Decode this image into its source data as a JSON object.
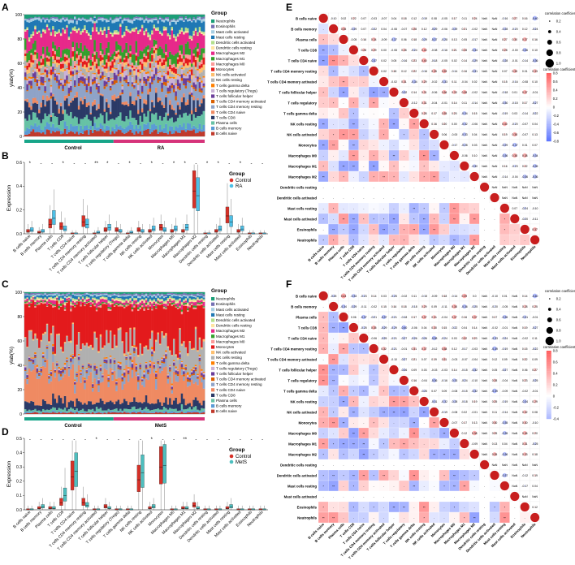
{
  "panel_labels": [
    "A",
    "B",
    "C",
    "D",
    "E",
    "F"
  ],
  "cell_types": [
    "B cells naive",
    "B cells memory",
    "Plasma cells",
    "T cells CD8",
    "T cells CD4 naive",
    "T cells CD4 memory resting",
    "T cells CD4 memory activated",
    "T cells follicular helper",
    "T cells regulatory (Tregs)",
    "T cells gamma delta",
    "NK cells resting",
    "NK cells activated",
    "Monocytes",
    "Macrophages M0",
    "Macrophages M1",
    "Macrophages M2",
    "Dendritic cells resting",
    "Dendritic cells activated",
    "Mast cells resting",
    "Mast cells activated",
    "Eosinophils",
    "Neutrophils"
  ],
  "legend_order": [
    "Neutrophils",
    "Eosinophils",
    "Mast cells activated",
    "Mast cells resting",
    "Dendritic cells activated",
    "Dendritic cells resting",
    "Macrophages M2",
    "Macrophages M1",
    "Macrophages M0",
    "Monocytes",
    "NK cells activated",
    "NK cells resting",
    "T cells gamma delta",
    "T cells regulatory (Tregs)",
    "T cells follicular helper",
    "T cells CD4 memory activated",
    "T cells CD4 memory resting",
    "T cells CD4 naive",
    "T cells CD8",
    "Plasma cells",
    "B cells memory",
    "B cells naive"
  ],
  "colors": {
    "Neutrophils": "#1b9e77",
    "Eosinophils": "#7570b3",
    "Mast cells activated": "#a6cee3",
    "Mast cells resting": "#1f78b4",
    "Dendritic cells activated": "#b2df8a",
    "Dendritic cells resting": "#ffe4a0",
    "Macrophages M2": "#e7298a",
    "Macrophages M1": "#33a02c",
    "Macrophages M0": "#fb9a99",
    "Monocytes": "#e31a1c",
    "NK cells activated": "#fdbf6f",
    "NK cells resting": "#b0b0b0",
    "T cells gamma delta": "#ff7f00",
    "T cells regulatory (Tregs)": "#cab2d6",
    "T cells follicular helper": "#6a3d9a",
    "T cells CD4 memory activated": "#d95f02",
    "T cells CD4 memory resting": "#8fa3c8",
    "T cells CD4 naive": "#ef8a62",
    "T cells CD8": "#2b3a67",
    "Plasma cells": "#66c2a5",
    "B cells memory": "#5a9bd5",
    "B cells naive": "#c0392b",
    "control": "#d73027",
    "case_B": "#4dbfe6",
    "case_D": "#4dbfbf",
    "bar_control": "#17a589",
    "bar_case": "#d6337a"
  },
  "panel_A": {
    "ylabel": "ylab(%)",
    "ticks": [
      "0",
      "20",
      "40",
      "60",
      "80",
      "100"
    ],
    "groups": [
      "Control",
      "RA"
    ],
    "legend_title": "Group"
  },
  "panel_C": {
    "ylabel": "ylab(%)",
    "ticks": [
      "0",
      "20",
      "40",
      "60",
      "80",
      "100"
    ],
    "groups": [
      "Control",
      "MetS"
    ],
    "legend_title": "Group"
  },
  "chart_data": [
    {
      "type": "bar",
      "panel": "A",
      "subtype": "stacked-100",
      "title": "",
      "ylabel": "ylab(%)",
      "groups": [
        "Control",
        "RA"
      ],
      "ylim": [
        0,
        100
      ],
      "note": "Relative abundance of 22 immune cell types per sample; Control on left, RA on right."
    },
    {
      "type": "boxplot",
      "panel": "B",
      "ylabel": "Expression",
      "ylim": [
        0,
        0.6
      ],
      "yticks": [
        "0.0",
        "0.2",
        "0.4",
        "0.6"
      ],
      "legend_title": "Group",
      "legend": [
        "Control",
        "RA"
      ],
      "categories": [
        "B cells naive",
        "B cells memory",
        "Plasma cells",
        "T cells CD8",
        "T cells CD4 naive",
        "T cells CD4 memory resting",
        "T cells CD4 memory activated",
        "T cells follicular helper",
        "T cells regulatory (Tregs)",
        "T cells gamma delta",
        "NK cells resting",
        "NK cells activated",
        "Monocytes",
        "Macrophages M0",
        "Macrophages M1",
        "Macrophages M2",
        "Dendritic cells resting",
        "Dendritic cells activated",
        "Mast cells resting",
        "Mast cells activated",
        "Eosinophils",
        "Neutrophils"
      ],
      "significance": [
        "*",
        "-",
        "-",
        "*",
        "-",
        "-",
        "**",
        "*",
        "-",
        "*",
        "-",
        "*",
        "-",
        "*",
        "*",
        "-",
        "*",
        "*",
        "-",
        "*",
        "-",
        "-"
      ],
      "medians_control": [
        0.02,
        0.01,
        0.08,
        0.06,
        0.0,
        0.1,
        0.0,
        0.03,
        0.03,
        0.0,
        0.03,
        0.02,
        0.05,
        0.02,
        0.02,
        0.36,
        0.0,
        0.02,
        0.15,
        0.02,
        0.0,
        0.0
      ],
      "medians_case": [
        0.03,
        0.02,
        0.13,
        0.04,
        0.0,
        0.08,
        0.01,
        0.05,
        0.02,
        0.01,
        0.02,
        0.04,
        0.03,
        0.04,
        0.05,
        0.32,
        0.0,
        0.04,
        0.1,
        0.04,
        0.0,
        0.0
      ]
    },
    {
      "type": "bar",
      "panel": "C",
      "subtype": "stacked-100",
      "ylabel": "ylab(%)",
      "groups": [
        "Control",
        "MetS"
      ],
      "ylim": [
        0,
        100
      ],
      "note": "Relative abundance of 22 immune cell types per sample; Control on left, MetS on right."
    },
    {
      "type": "boxplot",
      "panel": "D",
      "ylabel": "Expression",
      "ylim": [
        0,
        0.5
      ],
      "yticks": [
        "0.0",
        "0.1",
        "0.2",
        "0.3",
        "0.4",
        "0.5"
      ],
      "legend_title": "Group",
      "legend": [
        "Control",
        "MetS"
      ],
      "categories": [
        "B cells naive",
        "B cells memory",
        "Plasma cells",
        "T cells CD8",
        "T cells CD4 naive",
        "T cells CD4 memory resting",
        "T cells CD4 memory activated",
        "T cells follicular helper",
        "T cells regulatory (Tregs)",
        "T cells gamma delta",
        "NK cells resting",
        "NK cells activated",
        "Monocytes",
        "Macrophages M0",
        "Macrophages M1",
        "Macrophages M2",
        "Dendritic cells resting",
        "Dendritic cells activated",
        "Mast cells resting",
        "Mast cells activated",
        "Eosinophils",
        "Neutrophils"
      ],
      "significance": [
        "-",
        "-",
        "-",
        "-",
        "-",
        "-",
        "*",
        "-",
        "-",
        "-",
        "-",
        "*",
        "-",
        "-",
        "**",
        "-",
        "-",
        "-",
        "-",
        "-",
        "-",
        "-"
      ],
      "medians_control": [
        0.0,
        0.01,
        0.01,
        0.05,
        0.23,
        0.05,
        0.0,
        0.02,
        0.0,
        0.0,
        0.21,
        0.01,
        0.3,
        0.0,
        0.01,
        0.03,
        0.0,
        0.0,
        0.01,
        0.0,
        0.0,
        0.0
      ],
      "medians_case": [
        0.0,
        0.02,
        0.01,
        0.1,
        0.27,
        0.03,
        0.0,
        0.01,
        0.0,
        0.0,
        0.26,
        0.02,
        0.31,
        0.0,
        0.01,
        0.01,
        0.0,
        0.0,
        0.02,
        0.0,
        0.0,
        0.0
      ]
    },
    {
      "type": "heatmap",
      "panel": "E",
      "subtype": "correlation-lower-with-circles",
      "legend_circle_title": "correlation coefficient",
      "circle_ticks": [
        "0.2",
        "0.4",
        "0.6",
        "0.8",
        "1.0"
      ],
      "colorbar_title": "correlation coefficient",
      "colorbar_ticks": [
        "0.8",
        "0.6",
        "0.4",
        "0.2",
        "0",
        "-0.2",
        "-0.4",
        "-0.6",
        "-0.8"
      ],
      "labels": [
        "B cells naive",
        "B cells memory",
        "Plasma cells",
        "T cells CD8",
        "T cells CD4 naive",
        "T cells CD4 memory resting",
        "T cells CD4 memory activated",
        "T cells follicular helper",
        "T cells regulatory",
        "T cells gamma delta",
        "NK cells resting",
        "NK cells activated",
        "Monocytes",
        "Macrophages M0",
        "Macrophages M1",
        "Macrophages M2",
        "Dendritic cells resting",
        "Dendritic cells activated",
        "Mast cells resting",
        "Mast cells activated",
        "Eosinophils",
        "Neutrophils"
      ],
      "row0_values": [
        "-0.10",
        "0.02",
        "0.22",
        "0.07",
        "-0.03",
        "-0.07",
        "0.04",
        "0.18",
        "0.12",
        "-0.19",
        "0.08",
        "-0.05",
        "0.17",
        "0.11",
        "0.24",
        "NaN",
        "0.14",
        "-0.16",
        "0.27",
        "0.16"
      ]
    },
    {
      "type": "heatmap",
      "panel": "F",
      "subtype": "correlation-lower-with-circles",
      "legend_circle_title": "correlation coefficient",
      "circle_ticks": [
        "0.2",
        "0.4",
        "0.6",
        "0.8",
        "1.0"
      ],
      "colorbar_title": "correlation coefficient",
      "colorbar_ticks": [
        "0.8",
        "0.6",
        "0.4",
        "0.2",
        "0",
        "-0.2",
        "-0.4"
      ],
      "labels": [
        "B cells naive",
        "B cells memory",
        "Plasma cells",
        "T cells CD8",
        "T cells CD4 naive",
        "T cells CD4 memory resting",
        "T cells CD4 memory activated",
        "T cells follicular helper",
        "T cells regulatory",
        "T cells gamma delta",
        "NK cells resting",
        "NK cells activated",
        "Monocytes",
        "Macrophages M0",
        "Macrophages M1",
        "Macrophages M2",
        "Dendritic cells resting",
        "Dendritic cells activated",
        "Mast cells resting",
        "Mast cells activated",
        "Eosinophils",
        "Neutrophils"
      ],
      "row0_values": [
        "-0.25",
        "0.43",
        "-0.33",
        "-0.23",
        "0.14",
        "0.03",
        "-0.25",
        "-0.02",
        "0.11",
        "-0.15",
        "-0.09",
        "0.18",
        "-0.14",
        "0.39",
        "0.0",
        "NaN",
        "-0.10",
        "0.01",
        "NaN",
        "0.14"
      ]
    }
  ]
}
